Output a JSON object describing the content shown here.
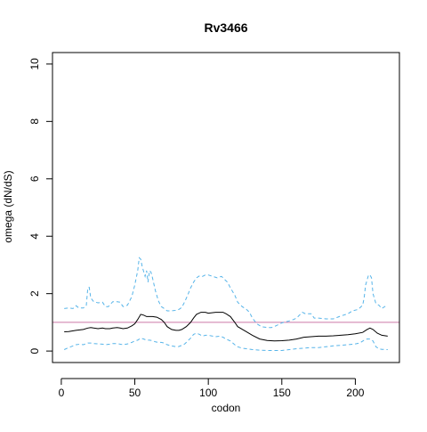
{
  "chart_data": {
    "type": "line",
    "title": "Rv3466",
    "xlabel": "codon",
    "ylabel": "omega (dN/dS)",
    "xlim": [
      -6,
      230
    ],
    "ylim": [
      -0.4,
      10.4
    ],
    "xticks": [
      0,
      50,
      100,
      150,
      200
    ],
    "yticks": [
      0,
      2,
      4,
      6,
      8,
      10
    ],
    "grid": false,
    "reference_line": {
      "y": 1,
      "color": "#cc79a7"
    },
    "series": [
      {
        "role": "mean",
        "style": "solid",
        "color": "#000000",
        "points": [
          [
            2,
            0.67
          ],
          [
            5,
            0.68
          ],
          [
            10,
            0.72
          ],
          [
            15,
            0.75
          ],
          [
            18,
            0.8
          ],
          [
            20,
            0.82
          ],
          [
            22,
            0.8
          ],
          [
            25,
            0.78
          ],
          [
            28,
            0.8
          ],
          [
            30,
            0.78
          ],
          [
            33,
            0.78
          ],
          [
            35,
            0.8
          ],
          [
            38,
            0.82
          ],
          [
            40,
            0.8
          ],
          [
            42,
            0.78
          ],
          [
            45,
            0.8
          ],
          [
            48,
            0.88
          ],
          [
            50,
            0.95
          ],
          [
            52,
            1.1
          ],
          [
            54,
            1.28
          ],
          [
            56,
            1.25
          ],
          [
            58,
            1.2
          ],
          [
            60,
            1.2
          ],
          [
            62,
            1.2
          ],
          [
            65,
            1.18
          ],
          [
            68,
            1.1
          ],
          [
            70,
            1.0
          ],
          [
            72,
            0.85
          ],
          [
            75,
            0.75
          ],
          [
            78,
            0.72
          ],
          [
            80,
            0.72
          ],
          [
            82,
            0.75
          ],
          [
            85,
            0.85
          ],
          [
            88,
            1.0
          ],
          [
            90,
            1.15
          ],
          [
            92,
            1.28
          ],
          [
            95,
            1.35
          ],
          [
            98,
            1.35
          ],
          [
            100,
            1.32
          ],
          [
            105,
            1.35
          ],
          [
            110,
            1.35
          ],
          [
            112,
            1.3
          ],
          [
            115,
            1.2
          ],
          [
            118,
            1.0
          ],
          [
            120,
            0.85
          ],
          [
            125,
            0.7
          ],
          [
            130,
            0.55
          ],
          [
            135,
            0.42
          ],
          [
            140,
            0.37
          ],
          [
            145,
            0.35
          ],
          [
            150,
            0.36
          ],
          [
            155,
            0.38
          ],
          [
            160,
            0.42
          ],
          [
            165,
            0.48
          ],
          [
            170,
            0.5
          ],
          [
            175,
            0.52
          ],
          [
            180,
            0.52
          ],
          [
            185,
            0.53
          ],
          [
            190,
            0.55
          ],
          [
            195,
            0.57
          ],
          [
            200,
            0.6
          ],
          [
            205,
            0.65
          ],
          [
            208,
            0.75
          ],
          [
            210,
            0.8
          ],
          [
            212,
            0.75
          ],
          [
            215,
            0.62
          ],
          [
            218,
            0.55
          ],
          [
            222,
            0.52
          ]
        ]
      },
      {
        "role": "upper",
        "style": "dashed",
        "color": "#56b4e9",
        "points": [
          [
            2,
            1.48
          ],
          [
            5,
            1.5
          ],
          [
            8,
            1.48
          ],
          [
            10,
            1.58
          ],
          [
            12,
            1.5
          ],
          [
            15,
            1.5
          ],
          [
            17,
            1.58
          ],
          [
            18,
            2.2
          ],
          [
            19,
            2.22
          ],
          [
            20,
            1.85
          ],
          [
            22,
            1.72
          ],
          [
            25,
            1.68
          ],
          [
            28,
            1.7
          ],
          [
            30,
            1.55
          ],
          [
            32,
            1.55
          ],
          [
            35,
            1.72
          ],
          [
            38,
            1.72
          ],
          [
            40,
            1.7
          ],
          [
            42,
            1.55
          ],
          [
            45,
            1.6
          ],
          [
            48,
            1.9
          ],
          [
            50,
            2.3
          ],
          [
            52,
            2.8
          ],
          [
            53,
            3.25
          ],
          [
            54,
            3.2
          ],
          [
            55,
            2.95
          ],
          [
            57,
            2.6
          ],
          [
            58,
            2.8
          ],
          [
            59,
            2.4
          ],
          [
            60,
            2.8
          ],
          [
            61,
            2.75
          ],
          [
            62,
            2.55
          ],
          [
            64,
            2.1
          ],
          [
            66,
            1.75
          ],
          [
            68,
            1.55
          ],
          [
            70,
            1.48
          ],
          [
            72,
            1.4
          ],
          [
            75,
            1.4
          ],
          [
            78,
            1.42
          ],
          [
            80,
            1.45
          ],
          [
            82,
            1.52
          ],
          [
            84,
            1.72
          ],
          [
            86,
            1.95
          ],
          [
            88,
            2.2
          ],
          [
            90,
            2.4
          ],
          [
            92,
            2.55
          ],
          [
            94,
            2.62
          ],
          [
            96,
            2.6
          ],
          [
            98,
            2.65
          ],
          [
            100,
            2.65
          ],
          [
            103,
            2.6
          ],
          [
            106,
            2.55
          ],
          [
            109,
            2.6
          ],
          [
            111,
            2.5
          ],
          [
            113,
            2.4
          ],
          [
            115,
            2.2
          ],
          [
            118,
            1.95
          ],
          [
            120,
            1.7
          ],
          [
            123,
            1.55
          ],
          [
            126,
            1.45
          ],
          [
            128,
            1.35
          ],
          [
            130,
            1.15
          ],
          [
            133,
            0.95
          ],
          [
            136,
            0.85
          ],
          [
            140,
            0.82
          ],
          [
            143,
            0.82
          ],
          [
            146,
            0.88
          ],
          [
            150,
            0.98
          ],
          [
            155,
            1.05
          ],
          [
            158,
            1.1
          ],
          [
            160,
            1.15
          ],
          [
            162,
            1.25
          ],
          [
            164,
            1.35
          ],
          [
            166,
            1.3
          ],
          [
            170,
            1.3
          ],
          [
            172,
            1.15
          ],
          [
            175,
            1.15
          ],
          [
            180,
            1.12
          ],
          [
            185,
            1.12
          ],
          [
            188,
            1.18
          ],
          [
            190,
            1.22
          ],
          [
            195,
            1.3
          ],
          [
            198,
            1.4
          ],
          [
            202,
            1.45
          ],
          [
            205,
            1.6
          ],
          [
            206,
            1.85
          ],
          [
            207,
            2.3
          ],
          [
            209,
            2.65
          ],
          [
            210,
            2.65
          ],
          [
            211,
            2.55
          ],
          [
            212,
            2.0
          ],
          [
            214,
            1.65
          ],
          [
            216,
            1.6
          ],
          [
            218,
            1.48
          ],
          [
            220,
            1.55
          ],
          [
            222,
            1.58
          ]
        ]
      },
      {
        "role": "lower",
        "style": "dashed",
        "color": "#56b4e9",
        "points": [
          [
            2,
            0.05
          ],
          [
            5,
            0.12
          ],
          [
            8,
            0.18
          ],
          [
            10,
            0.22
          ],
          [
            13,
            0.24
          ],
          [
            15,
            0.22
          ],
          [
            18,
            0.28
          ],
          [
            20,
            0.28
          ],
          [
            22,
            0.26
          ],
          [
            25,
            0.25
          ],
          [
            28,
            0.24
          ],
          [
            30,
            0.22
          ],
          [
            33,
            0.24
          ],
          [
            35,
            0.26
          ],
          [
            38,
            0.26
          ],
          [
            40,
            0.24
          ],
          [
            42,
            0.22
          ],
          [
            45,
            0.25
          ],
          [
            48,
            0.3
          ],
          [
            50,
            0.35
          ],
          [
            52,
            0.38
          ],
          [
            54,
            0.45
          ],
          [
            56,
            0.42
          ],
          [
            58,
            0.38
          ],
          [
            60,
            0.38
          ],
          [
            62,
            0.36
          ],
          [
            64,
            0.32
          ],
          [
            66,
            0.3
          ],
          [
            68,
            0.3
          ],
          [
            70,
            0.28
          ],
          [
            72,
            0.22
          ],
          [
            75,
            0.18
          ],
          [
            78,
            0.15
          ],
          [
            80,
            0.16
          ],
          [
            82,
            0.2
          ],
          [
            84,
            0.25
          ],
          [
            86,
            0.35
          ],
          [
            88,
            0.45
          ],
          [
            90,
            0.58
          ],
          [
            92,
            0.62
          ],
          [
            94,
            0.58
          ],
          [
            96,
            0.52
          ],
          [
            98,
            0.55
          ],
          [
            100,
            0.55
          ],
          [
            103,
            0.52
          ],
          [
            105,
            0.5
          ],
          [
            108,
            0.52
          ],
          [
            110,
            0.48
          ],
          [
            112,
            0.42
          ],
          [
            115,
            0.35
          ],
          [
            118,
            0.22
          ],
          [
            120,
            0.15
          ],
          [
            123,
            0.1
          ],
          [
            126,
            0.08
          ],
          [
            130,
            0.05
          ],
          [
            135,
            0.03
          ],
          [
            140,
            0.02
          ],
          [
            145,
            0.02
          ],
          [
            150,
            0.02
          ],
          [
            155,
            0.05
          ],
          [
            160,
            0.08
          ],
          [
            165,
            0.1
          ],
          [
            170,
            0.12
          ],
          [
            175,
            0.12
          ],
          [
            180,
            0.15
          ],
          [
            185,
            0.18
          ],
          [
            190,
            0.2
          ],
          [
            195,
            0.22
          ],
          [
            200,
            0.25
          ],
          [
            203,
            0.28
          ],
          [
            206,
            0.38
          ],
          [
            208,
            0.42
          ],
          [
            210,
            0.42
          ],
          [
            212,
            0.35
          ],
          [
            214,
            0.15
          ],
          [
            216,
            0.08
          ],
          [
            218,
            0.06
          ],
          [
            222,
            0.05
          ]
        ]
      }
    ]
  }
}
